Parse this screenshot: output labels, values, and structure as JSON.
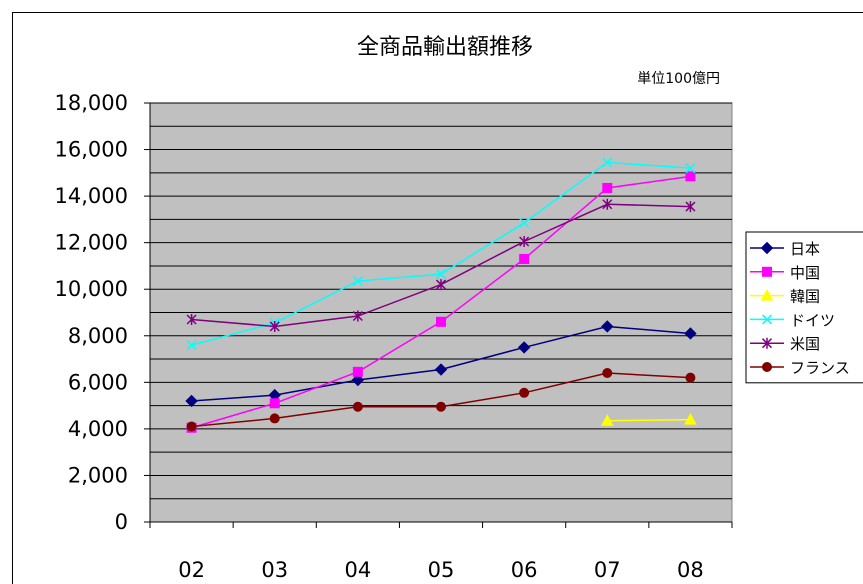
{
  "chart_data": {
    "type": "line",
    "title": "全商品輸出額推移",
    "unit_label": "単位100億円",
    "categories": [
      "02",
      "03",
      "04",
      "05",
      "06",
      "07",
      "08"
    ],
    "ylim": [
      0,
      18000
    ],
    "yticks": [
      "0",
      "2,000",
      "4,000",
      "6,000",
      "8,000",
      "10,000",
      "12,000",
      "14,000",
      "16,000",
      "18,000"
    ],
    "grid": true,
    "legend_position": "right",
    "plot_background": "#c0c0c0",
    "series": [
      {
        "name": "日本",
        "color": "#000080",
        "marker": "diamond",
        "values": [
          5200,
          5450,
          6100,
          6550,
          7500,
          8400,
          8100
        ]
      },
      {
        "name": "中国",
        "color": "#ff00ff",
        "marker": "square",
        "values": [
          4050,
          5100,
          6450,
          8600,
          11300,
          14350,
          14850
        ]
      },
      {
        "name": "韓国",
        "color": "#ffff00",
        "marker": "triangle",
        "values": [
          null,
          null,
          null,
          null,
          null,
          4350,
          4400
        ]
      },
      {
        "name": "ドイツ",
        "color": "#00ffff",
        "marker": "x",
        "values": [
          7600,
          8550,
          10350,
          10650,
          12850,
          15450,
          15200
        ]
      },
      {
        "name": "米国",
        "color": "#800080",
        "marker": "star",
        "values": [
          8700,
          8400,
          8850,
          10200,
          12050,
          13650,
          13550
        ]
      },
      {
        "name": "フランス",
        "color": "#800000",
        "marker": "circle",
        "values": [
          4100,
          4450,
          4950,
          4950,
          5550,
          6400,
          6200
        ]
      }
    ]
  }
}
